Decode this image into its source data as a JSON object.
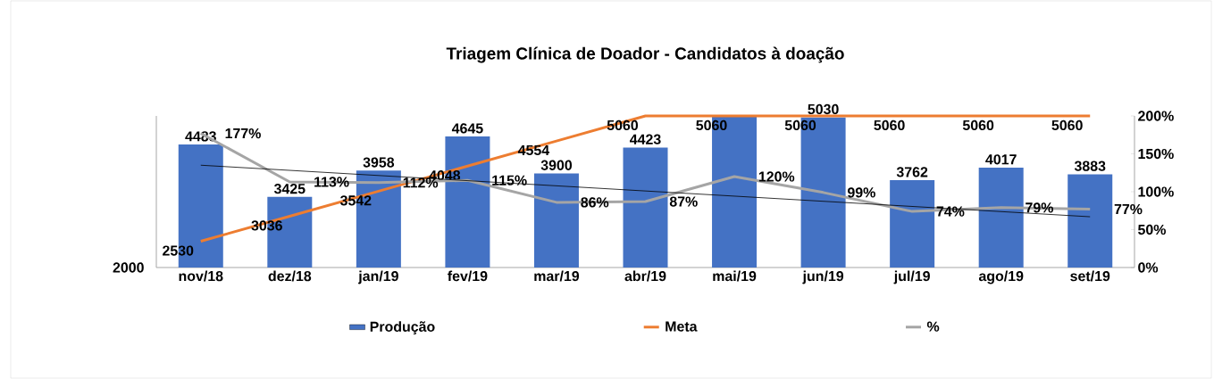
{
  "chart_data": {
    "type": "bar",
    "title": "Triagem Clínica de Doador - Candidatos à doação",
    "categories": [
      "nov/18",
      "dez/18",
      "jan/19",
      "fev/19",
      "mar/19",
      "abr/19",
      "mai/19",
      "jun/19",
      "jul/19",
      "ago/19",
      "set/19"
    ],
    "series": [
      {
        "name": "Produção",
        "color": "#4472c4",
        "values": [
          4483,
          3425,
          3958,
          4645,
          3900,
          4423,
          5060,
          5030,
          3762,
          4017,
          3883
        ],
        "value_labels": [
          "4483",
          "3425",
          "3958",
          "4645",
          "3900",
          "4423",
          null,
          "5030",
          "3762",
          "4017",
          "3883"
        ]
      },
      {
        "name": "Meta",
        "type": "line",
        "color": "#ed7d31",
        "values": [
          2530,
          3036,
          3542,
          4048,
          4554,
          5060,
          5060,
          5060,
          5060,
          5060,
          5060
        ],
        "data_labels": true
      },
      {
        "name": "%",
        "type": "line",
        "axis": "y2",
        "color": "#a5a5a5",
        "values": [
          177,
          113,
          112,
          115,
          86,
          87,
          120,
          99,
          74,
          79,
          77
        ],
        "value_labels": [
          "177%",
          "113%",
          "112%",
          "115%",
          "86%",
          "87%",
          "120%",
          "99%",
          "74%",
          "79%",
          "77%"
        ]
      },
      {
        "type": "line",
        "axis": "y2",
        "color": "#000000",
        "values": [
          135,
          null,
          null,
          null,
          null,
          null,
          null,
          null,
          null,
          null,
          67
        ]
      }
    ],
    "ylim": [
      2000,
      5060
    ],
    "annotations": [
      "2000"
    ],
    "y2lim": [
      0,
      200
    ],
    "y2ticks": [
      {
        "value": 0,
        "label": "0%"
      },
      {
        "value": 50,
        "label": "50%"
      },
      {
        "value": 100,
        "label": "100%"
      },
      {
        "value": 150,
        "label": "150%"
      },
      {
        "value": 200,
        "label": "200%"
      }
    ],
    "legend": "bottom"
  }
}
